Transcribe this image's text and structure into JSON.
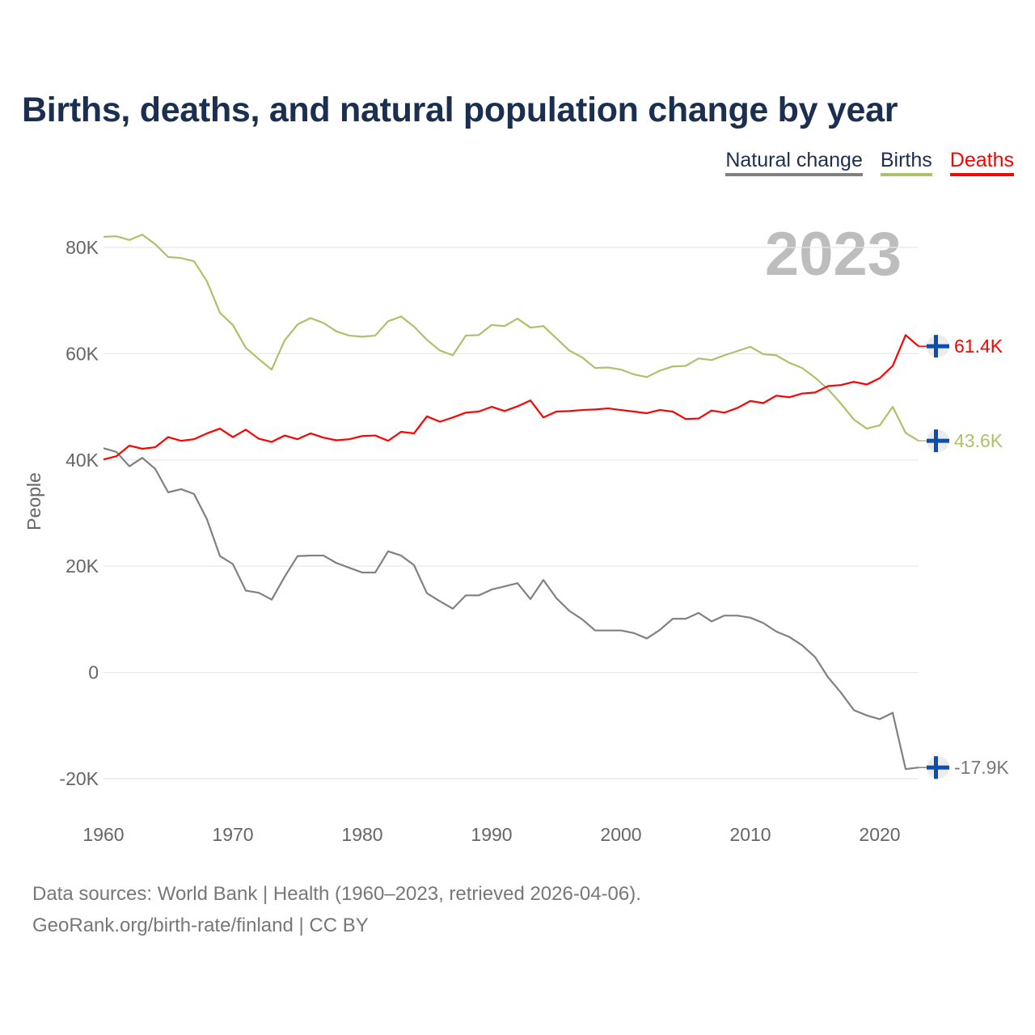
{
  "chart_data": {
    "type": "line",
    "title": "Births, deaths, and natural population change by year",
    "ylabel": "People",
    "xlabel": "",
    "year_watermark": "2023",
    "ylim": [
      -20000,
      80000
    ],
    "xlim": [
      1960,
      2023
    ],
    "grid": true,
    "legend_position": "top-right",
    "yticks": [
      {
        "v": 80000,
        "label": "80K"
      },
      {
        "v": 60000,
        "label": "60K"
      },
      {
        "v": 40000,
        "label": "40K"
      },
      {
        "v": 20000,
        "label": "20K"
      },
      {
        "v": 0,
        "label": "0"
      },
      {
        "v": -20000,
        "label": "-20K"
      }
    ],
    "xticks": [
      {
        "v": 1960,
        "label": "1960"
      },
      {
        "v": 1970,
        "label": "1970"
      },
      {
        "v": 1980,
        "label": "1980"
      },
      {
        "v": 1990,
        "label": "1990"
      },
      {
        "v": 2000,
        "label": "2000"
      },
      {
        "v": 2010,
        "label": "2010"
      },
      {
        "v": 2020,
        "label": "2020"
      }
    ],
    "x_start": 1960,
    "series": [
      {
        "name": "Natural change",
        "color": "#808080",
        "end_label": "-17.9K",
        "values": [
          42.2,
          41.5,
          38.8,
          40.4,
          38.3,
          33.9,
          34.5,
          33.6,
          28.8,
          21.9,
          20.4,
          15.4,
          15.0,
          13.7,
          18.0,
          21.9,
          22.0,
          22.0,
          20.6,
          19.7,
          18.8,
          18.8,
          22.8,
          22.0,
          20.2,
          14.9,
          13.4,
          12.0,
          14.5,
          14.5,
          15.6,
          16.2,
          16.8,
          13.8,
          17.4,
          14.0,
          11.6,
          10.0,
          7.9,
          7.9,
          7.9,
          7.4,
          6.4,
          8.0,
          10.1,
          10.1,
          11.2,
          9.6,
          10.7,
          10.7,
          10.3,
          9.3,
          7.7,
          6.7,
          5.1,
          2.9,
          -0.9,
          -3.8,
          -7.1,
          -8.1,
          -8.8,
          -7.6,
          -18.2,
          -17.9
        ]
      },
      {
        "name": "Births",
        "color": "#aec16a",
        "end_label": "43.6K",
        "values": [
          82.0,
          82.1,
          81.4,
          82.4,
          80.6,
          78.2,
          78.0,
          77.4,
          73.6,
          67.7,
          65.4,
          61.1,
          59.0,
          57.0,
          62.5,
          65.5,
          66.7,
          65.8,
          64.2,
          63.4,
          63.2,
          63.4,
          66.1,
          67.0,
          65.1,
          62.6,
          60.6,
          59.7,
          63.4,
          63.5,
          65.4,
          65.2,
          66.6,
          64.9,
          65.2,
          62.9,
          60.6,
          59.3,
          57.3,
          57.4,
          57.0,
          56.1,
          55.6,
          56.8,
          57.6,
          57.7,
          59.1,
          58.8,
          59.7,
          60.5,
          61.3,
          59.9,
          59.7,
          58.3,
          57.3,
          55.5,
          53.3,
          50.6,
          47.6,
          45.9,
          46.5,
          50.0,
          45.1,
          43.6
        ]
      },
      {
        "name": "Deaths",
        "color": "#ff0000",
        "end_label": "61.4K",
        "values": [
          40.1,
          40.7,
          42.7,
          42.1,
          42.4,
          44.3,
          43.6,
          43.9,
          45.0,
          45.9,
          44.3,
          45.7,
          44.0,
          43.4,
          44.6,
          43.9,
          45.0,
          44.2,
          43.7,
          43.9,
          44.5,
          44.6,
          43.6,
          45.3,
          45.0,
          48.2,
          47.2,
          48.0,
          48.9,
          49.1,
          50.0,
          49.2,
          50.1,
          51.2,
          48.0,
          49.1,
          49.2,
          49.4,
          49.5,
          49.7,
          49.4,
          49.1,
          48.8,
          49.4,
          49.1,
          47.7,
          47.8,
          49.3,
          48.9,
          49.8,
          51.1,
          50.7,
          52.1,
          51.8,
          52.5,
          52.7,
          53.9,
          54.1,
          54.7,
          54.2,
          55.4,
          57.7,
          63.5,
          61.4
        ]
      }
    ],
    "values_unit": "thousands of people"
  },
  "footer": {
    "line1": "Data sources: World Bank | Health (1960–2023, retrieved 2026-04-06).",
    "line2": "GeoRank.org/birth-rate/finland | CC BY"
  }
}
